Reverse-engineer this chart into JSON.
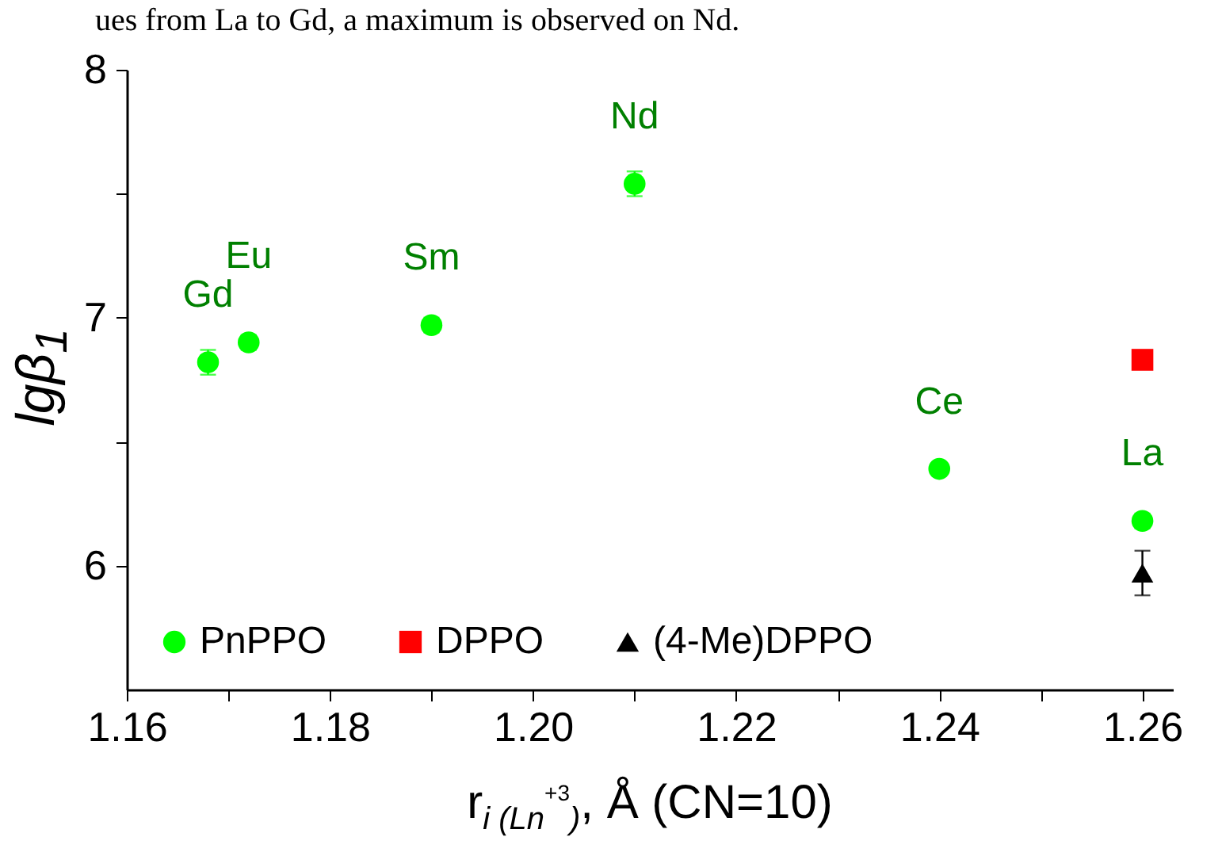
{
  "chart_data": {
    "type": "scatter",
    "xlabel": "r$_{i (Ln}$$^{+3}$$_{)}$, Å (CN=10)",
    "ylabel": "lgβ$_{1}$",
    "xlim": [
      1.16,
      1.263
    ],
    "xticks": [
      1.16,
      {
        "value": 1.17,
        "label": null
      },
      1.18,
      {
        "value": 1.19,
        "label": null
      },
      {
        "value": 1.2,
        "label": "1.20"
      },
      {
        "value": 1.21,
        "label": null
      },
      1.22,
      {
        "value": 1.23,
        "label": null
      },
      1.24,
      {
        "value": 1.25,
        "label": null
      },
      1.26
    ],
    "ylim": [
      5.5,
      8
    ],
    "yticks": [
      6,
      {
        "value": 6.5,
        "label": null
      },
      7,
      {
        "value": 7.5,
        "label": null
      },
      8
    ],
    "legend": "bottom left",
    "grid": false,
    "series": [
      {
        "name": "PnPPO",
        "color": "#00ff00",
        "marker": "circle",
        "x": [
          1.168,
          1.172,
          1.19,
          1.21,
          1.24,
          1.26
        ],
        "values": [
          6.82,
          6.9,
          6.97,
          7.54,
          6.39,
          6.18
        ],
        "errors": [
          0.05,
          0.03,
          0.03,
          0.05,
          null,
          0.03
        ]
      },
      {
        "name": "DPPO",
        "color": "#ff0000",
        "marker": "square",
        "x": [
          1.26
        ],
        "values": [
          6.83
        ],
        "errors": [
          0.03
        ]
      },
      {
        "name": "(4-Me)DPPO",
        "color": "#000000",
        "marker": "triangle",
        "x": [
          1.26
        ],
        "values": [
          5.97
        ],
        "errors": [
          0.09
        ]
      }
    ],
    "annotations": [
      "ues from La to Gd, a maximum is observed on Nd.",
      {
        "text": "Gd",
        "x": 1.168,
        "y": 6.82
      },
      {
        "text": "Eu",
        "x": 1.172,
        "y": 6.9
      },
      {
        "text": "Sm",
        "x": 1.19,
        "y": 6.97
      },
      {
        "text": "Nd",
        "x": 1.21,
        "y": 7.54
      },
      {
        "text": "Ce",
        "x": 1.24,
        "y": 6.39
      },
      {
        "text": "La",
        "x": 1.26,
        "y": 6.18
      }
    ]
  }
}
